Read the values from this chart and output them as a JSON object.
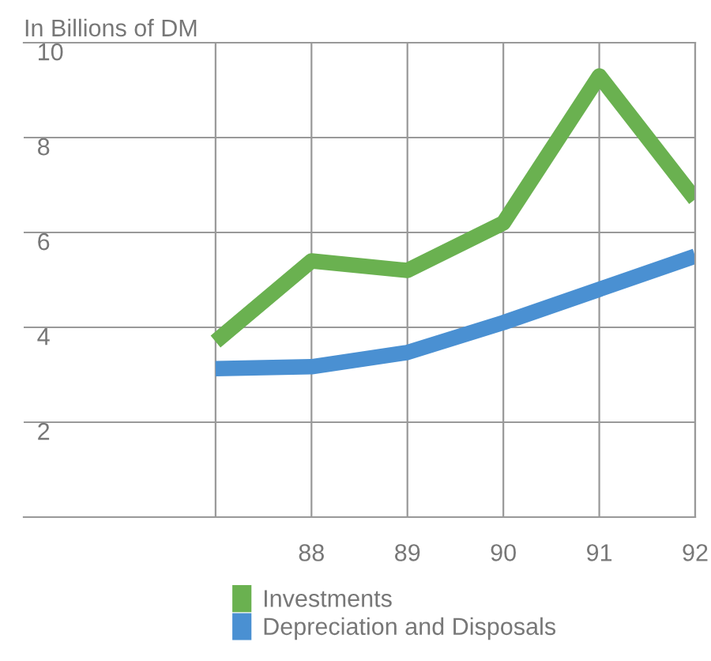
{
  "chart_data": {
    "type": "line",
    "subtitle": "In Billions of DM",
    "x": [
      87,
      88,
      89,
      90,
      91,
      92
    ],
    "series": [
      {
        "name": "Investments",
        "color": "#6ab150",
        "values": [
          3.7,
          5.4,
          5.2,
          6.2,
          9.3,
          6.7
        ]
      },
      {
        "name": "Depreciation and Disposals",
        "color": "#4a90d2",
        "values": [
          3.13,
          3.17,
          3.47,
          4.1,
          4.8,
          5.5
        ]
      }
    ],
    "xlim": [
      85,
      92
    ],
    "xticks": [
      {
        "value": 87,
        "label": null
      },
      88,
      89,
      90,
      91,
      92
    ],
    "ylim": [
      0,
      10
    ],
    "yticks": [
      {
        "value": 0,
        "label": null
      },
      2,
      4,
      6,
      8,
      10
    ],
    "grid": true,
    "legend": "bottom",
    "line_style": "solid",
    "marker": "none"
  }
}
